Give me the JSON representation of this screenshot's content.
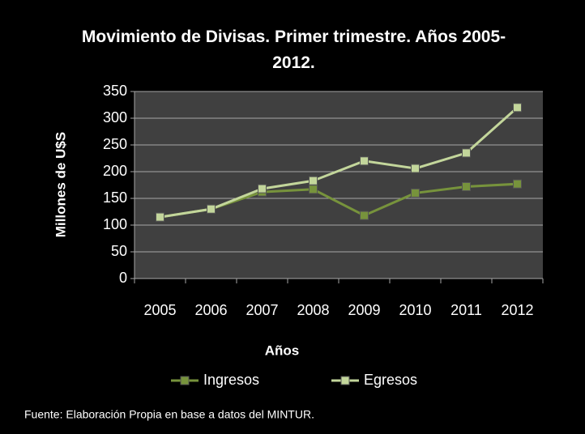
{
  "chart_data": {
    "type": "line",
    "title": "Movimiento de Divisas. Primer trimestre. Años 2005-2012.",
    "x_label": "Años",
    "y_label": "Millones de U$S",
    "categories": [
      "2005",
      "2006",
      "2007",
      "2008",
      "2009",
      "2010",
      "2011",
      "2012"
    ],
    "series": [
      {
        "name": "Ingresos",
        "color": "#77933c",
        "values": [
          115,
          130,
          162,
          167,
          118,
          160,
          172,
          177
        ]
      },
      {
        "name": "Egresos",
        "color": "#c3d69b",
        "values": [
          115,
          130,
          168,
          183,
          220,
          206,
          235,
          320
        ]
      }
    ],
    "ylim": [
      0,
      350
    ],
    "yticks": [
      0,
      50,
      100,
      150,
      200,
      250,
      300,
      350
    ],
    "grid": true,
    "legend": "bottom",
    "source": "Fuente: Elaboración Propia en base a datos del MINTUR."
  }
}
